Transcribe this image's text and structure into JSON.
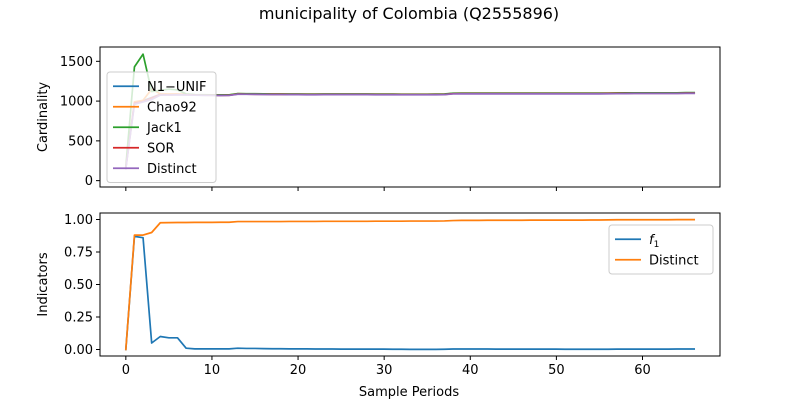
{
  "figure": {
    "title": "municipality of Colombia (Q2555896)",
    "xlabel": "Sample Periods"
  },
  "chart_data": [
    {
      "type": "line",
      "ylabel": "Cardinality",
      "xlim": [
        -3,
        69
      ],
      "ylim": [
        -80,
        1680
      ],
      "xticks": [
        0,
        10,
        20,
        30,
        40,
        50,
        60
      ],
      "yticks": [
        0,
        500,
        1000,
        1500
      ],
      "ytick_labels": [
        "0",
        "500",
        "1000",
        "1500"
      ],
      "legend": "upper-left",
      "series": [
        {
          "name": "N1−UNIF",
          "color": "#1f77b4",
          "x": [
            0,
            1,
            2,
            3,
            4,
            5,
            6,
            7,
            8,
            9,
            10,
            11,
            12,
            13,
            14,
            15,
            16,
            17,
            18,
            19,
            20,
            21,
            22,
            23,
            24,
            25,
            26,
            27,
            28,
            29,
            30,
            31,
            32,
            33,
            34,
            35,
            36,
            37,
            38,
            39,
            40,
            41,
            42,
            43,
            44,
            45,
            46,
            47,
            48,
            49,
            50,
            51,
            52,
            53,
            54,
            55,
            56,
            57,
            58,
            59,
            60,
            61,
            62,
            63,
            64,
            65,
            66
          ],
          "values": [
            160,
            985,
            1005,
            1045,
            1085,
            1080,
            1085,
            1082,
            1078,
            1076,
            1075,
            1074,
            1075,
            1090,
            1089,
            1088,
            1087,
            1086,
            1086,
            1085,
            1085,
            1084,
            1084,
            1085,
            1085,
            1085,
            1085,
            1085,
            1085,
            1084,
            1084,
            1084,
            1083,
            1083,
            1083,
            1083,
            1084,
            1085,
            1095,
            1096,
            1096,
            1096,
            1096,
            1096,
            1096,
            1096,
            1096,
            1096,
            1096,
            1096,
            1096,
            1096,
            1096,
            1096,
            1096,
            1096,
            1097,
            1098,
            1099,
            1100,
            1100,
            1100,
            1100,
            1100,
            1100,
            1102,
            1102
          ]
        },
        {
          "name": "Chao92",
          "color": "#ff7f0e",
          "x": [
            0,
            1,
            2,
            3,
            4,
            5,
            6,
            7,
            8,
            9,
            10,
            11,
            12,
            13,
            14,
            15,
            16,
            17,
            18,
            19,
            20,
            21,
            22,
            23,
            24,
            25,
            26,
            27,
            28,
            29,
            30,
            31,
            32,
            33,
            34,
            35,
            36,
            37,
            38,
            39,
            40,
            41,
            42,
            43,
            44,
            45,
            46,
            47,
            48,
            49,
            50,
            51,
            52,
            53,
            54,
            55,
            56,
            57,
            58,
            59,
            60,
            61,
            62,
            63,
            64,
            65,
            66
          ],
          "values": [
            160,
            990,
            1010,
            1150,
            1090,
            1090,
            1090,
            1085,
            1080,
            1078,
            1077,
            1076,
            1077,
            1092,
            1091,
            1090,
            1089,
            1088,
            1088,
            1087,
            1087,
            1086,
            1086,
            1087,
            1087,
            1087,
            1087,
            1087,
            1087,
            1086,
            1086,
            1086,
            1085,
            1085,
            1085,
            1085,
            1086,
            1087,
            1097,
            1098,
            1098,
            1098,
            1098,
            1098,
            1098,
            1098,
            1098,
            1098,
            1098,
            1098,
            1098,
            1098,
            1098,
            1098,
            1098,
            1098,
            1099,
            1100,
            1101,
            1102,
            1102,
            1102,
            1102,
            1102,
            1102,
            1104,
            1104
          ]
        },
        {
          "name": "Jack1",
          "color": "#2ca02c",
          "x": [
            0,
            1,
            2,
            3,
            4,
            5,
            6,
            7,
            8,
            9,
            10,
            11,
            12,
            13,
            14,
            15,
            16,
            17,
            18,
            19,
            20,
            21,
            22,
            23,
            24,
            25,
            26,
            27,
            28,
            29,
            30,
            31,
            32,
            33,
            34,
            35,
            36,
            37,
            38,
            39,
            40,
            41,
            42,
            43,
            44,
            45,
            46,
            47,
            48,
            49,
            50,
            51,
            52,
            53,
            54,
            55,
            56,
            57,
            58,
            59,
            60,
            61,
            62,
            63,
            64,
            65,
            66
          ],
          "values": [
            180,
            1430,
            1590,
            1120,
            1135,
            1150,
            1140,
            1090,
            1082,
            1080,
            1079,
            1078,
            1079,
            1094,
            1093,
            1092,
            1091,
            1090,
            1090,
            1089,
            1089,
            1088,
            1088,
            1089,
            1089,
            1089,
            1089,
            1089,
            1089,
            1088,
            1088,
            1088,
            1087,
            1087,
            1087,
            1087,
            1088,
            1089,
            1099,
            1100,
            1100,
            1100,
            1100,
            1100,
            1100,
            1100,
            1100,
            1100,
            1100,
            1100,
            1100,
            1100,
            1100,
            1100,
            1100,
            1100,
            1101,
            1102,
            1103,
            1104,
            1104,
            1104,
            1104,
            1104,
            1104,
            1106,
            1106
          ]
        },
        {
          "name": "SOR",
          "color": "#d62728",
          "x": [
            0,
            1,
            2,
            3,
            4,
            5,
            6,
            7,
            8,
            9,
            10,
            11,
            12,
            13,
            14,
            15,
            16,
            17,
            18,
            19,
            20,
            21,
            22,
            23,
            24,
            25,
            26,
            27,
            28,
            29,
            30,
            31,
            32,
            33,
            34,
            35,
            36,
            37,
            38,
            39,
            40,
            41,
            42,
            43,
            44,
            45,
            46,
            47,
            48,
            49,
            50,
            51,
            52,
            53,
            54,
            55,
            56,
            57,
            58,
            59,
            60,
            61,
            62,
            63,
            64,
            65,
            66
          ],
          "values": [
            160,
            975,
            995,
            1040,
            1082,
            1078,
            1082,
            1080,
            1076,
            1074,
            1073,
            1072,
            1073,
            1088,
            1087,
            1086,
            1085,
            1084,
            1084,
            1083,
            1083,
            1082,
            1082,
            1083,
            1083,
            1083,
            1083,
            1083,
            1083,
            1082,
            1082,
            1082,
            1081,
            1081,
            1081,
            1081,
            1082,
            1083,
            1093,
            1094,
            1094,
            1094,
            1094,
            1094,
            1094,
            1094,
            1094,
            1094,
            1094,
            1094,
            1094,
            1094,
            1094,
            1094,
            1094,
            1094,
            1095,
            1096,
            1097,
            1098,
            1098,
            1098,
            1098,
            1098,
            1098,
            1100,
            1100
          ]
        },
        {
          "name": "Distinct",
          "color": "#9467bd",
          "x": [
            0,
            1,
            2,
            3,
            4,
            5,
            6,
            7,
            8,
            9,
            10,
            11,
            12,
            13,
            14,
            15,
            16,
            17,
            18,
            19,
            20,
            21,
            22,
            23,
            24,
            25,
            26,
            27,
            28,
            29,
            30,
            31,
            32,
            33,
            34,
            35,
            36,
            37,
            38,
            39,
            40,
            41,
            42,
            43,
            44,
            45,
            46,
            47,
            48,
            49,
            50,
            51,
            52,
            53,
            54,
            55,
            56,
            57,
            58,
            59,
            60,
            61,
            62,
            63,
            64,
            65,
            66
          ],
          "values": [
            150,
            960,
            990,
            1020,
            1075,
            1076,
            1078,
            1077,
            1074,
            1072,
            1071,
            1070,
            1071,
            1086,
            1085,
            1084,
            1083,
            1082,
            1082,
            1081,
            1081,
            1080,
            1080,
            1081,
            1081,
            1081,
            1081,
            1081,
            1081,
            1080,
            1080,
            1080,
            1079,
            1079,
            1079,
            1079,
            1080,
            1081,
            1090,
            1091,
            1091,
            1091,
            1091,
            1091,
            1091,
            1091,
            1091,
            1091,
            1091,
            1091,
            1091,
            1091,
            1091,
            1091,
            1091,
            1091,
            1092,
            1093,
            1094,
            1095,
            1095,
            1095,
            1095,
            1095,
            1095,
            1097,
            1097
          ]
        }
      ]
    },
    {
      "type": "line",
      "ylabel": "Indicators",
      "xlim": [
        -3,
        69
      ],
      "ylim": [
        -0.05,
        1.05
      ],
      "xticks": [
        0,
        10,
        20,
        30,
        40,
        50,
        60
      ],
      "xtick_labels": [
        "0",
        "10",
        "20",
        "30",
        "40",
        "50",
        "60"
      ],
      "yticks": [
        0,
        0.25,
        0.5,
        0.75,
        1.0
      ],
      "ytick_labels": [
        "0.00",
        "0.25",
        "0.50",
        "0.75",
        "1.00"
      ],
      "legend": "upper-right",
      "series": [
        {
          "name": "f1",
          "name_base": "f",
          "name_sub": "1",
          "color": "#1f77b4",
          "x": [
            0,
            1,
            2,
            3,
            4,
            5,
            6,
            7,
            8,
            9,
            10,
            11,
            12,
            13,
            14,
            15,
            16,
            17,
            18,
            19,
            20,
            21,
            22,
            23,
            24,
            25,
            26,
            27,
            28,
            29,
            30,
            31,
            32,
            33,
            34,
            35,
            36,
            37,
            38,
            39,
            40,
            41,
            42,
            43,
            44,
            45,
            46,
            47,
            48,
            49,
            50,
            51,
            52,
            53,
            54,
            55,
            56,
            57,
            58,
            59,
            60,
            61,
            62,
            63,
            64,
            65,
            66
          ],
          "values": [
            0.0,
            0.87,
            0.86,
            0.05,
            0.1,
            0.09,
            0.09,
            0.01,
            0.005,
            0.005,
            0.005,
            0.005,
            0.005,
            0.01,
            0.008,
            0.008,
            0.007,
            0.006,
            0.006,
            0.005,
            0.005,
            0.005,
            0.004,
            0.004,
            0.004,
            0.003,
            0.003,
            0.003,
            0.003,
            0.003,
            0.003,
            0.002,
            0.002,
            0.001,
            0.001,
            0.001,
            0.001,
            0.002,
            0.004,
            0.004,
            0.004,
            0.004,
            0.004,
            0.003,
            0.003,
            0.003,
            0.003,
            0.003,
            0.003,
            0.003,
            0.003,
            0.002,
            0.002,
            0.002,
            0.002,
            0.002,
            0.002,
            0.003,
            0.003,
            0.003,
            0.003,
            0.003,
            0.003,
            0.003,
            0.004,
            0.004,
            0.004
          ]
        },
        {
          "name": "Distinct",
          "color": "#ff7f0e",
          "x": [
            0,
            1,
            2,
            3,
            4,
            5,
            6,
            7,
            8,
            9,
            10,
            11,
            12,
            13,
            14,
            15,
            16,
            17,
            18,
            19,
            20,
            21,
            22,
            23,
            24,
            25,
            26,
            27,
            28,
            29,
            30,
            31,
            32,
            33,
            34,
            35,
            36,
            37,
            38,
            39,
            40,
            41,
            42,
            43,
            44,
            45,
            46,
            47,
            48,
            49,
            50,
            51,
            52,
            53,
            54,
            55,
            56,
            57,
            58,
            59,
            60,
            61,
            62,
            63,
            64,
            65,
            66
          ],
          "values": [
            0.0,
            0.88,
            0.88,
            0.9,
            0.975,
            0.976,
            0.977,
            0.977,
            0.978,
            0.978,
            0.978,
            0.979,
            0.979,
            0.984,
            0.984,
            0.984,
            0.984,
            0.984,
            0.984,
            0.985,
            0.985,
            0.985,
            0.985,
            0.986,
            0.986,
            0.986,
            0.986,
            0.986,
            0.986,
            0.987,
            0.987,
            0.987,
            0.987,
            0.988,
            0.988,
            0.988,
            0.988,
            0.989,
            0.992,
            0.993,
            0.993,
            0.993,
            0.994,
            0.994,
            0.994,
            0.994,
            0.994,
            0.995,
            0.995,
            0.995,
            0.995,
            0.995,
            0.995,
            0.995,
            0.996,
            0.996,
            0.997,
            0.998,
            0.998,
            0.998,
            0.998,
            0.998,
            0.998,
            0.998,
            0.999,
            0.999,
            0.999
          ]
        }
      ]
    }
  ]
}
